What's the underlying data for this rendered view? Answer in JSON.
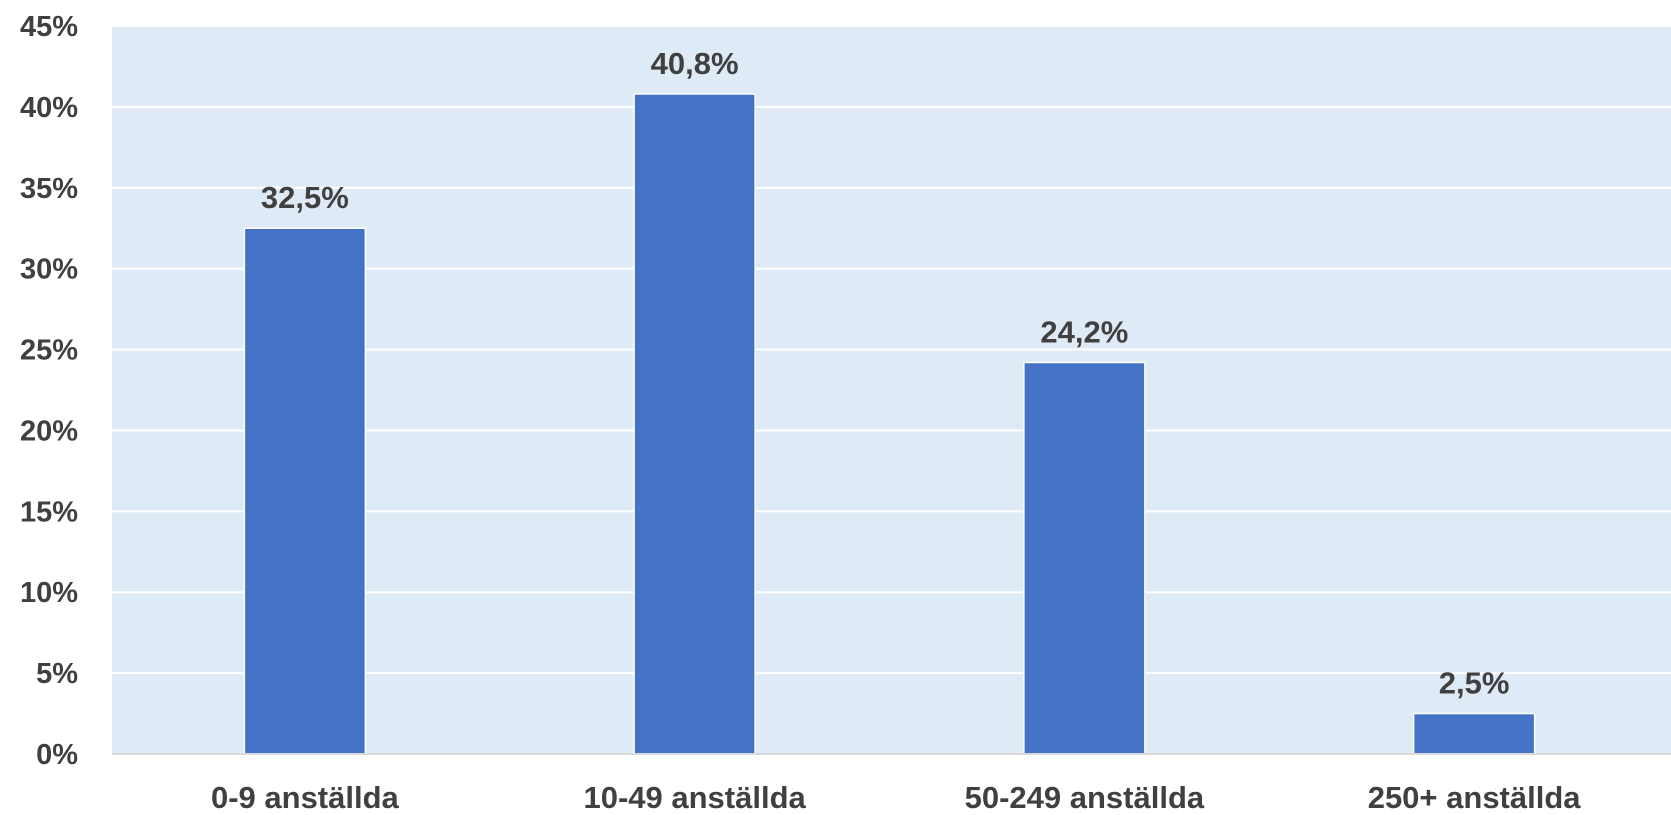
{
  "chart_data": {
    "type": "bar",
    "categories": [
      "0-9 anställda",
      "10-49 anställda",
      "50-249 anställda",
      "250+ anställda"
    ],
    "values": [
      32.5,
      40.8,
      24.2,
      2.5
    ],
    "data_labels": [
      "32,5%",
      "40,8%",
      "24,2%",
      "2,5%"
    ],
    "y_ticks": [
      "0%",
      "5%",
      "10%",
      "15%",
      "20%",
      "25%",
      "30%",
      "35%",
      "40%",
      "45%"
    ],
    "ylim": [
      0,
      45
    ],
    "grid": true,
    "legend": "none",
    "colors": {
      "bar": "#4472c4",
      "plot_background": "#deeaf6",
      "gridline": "#ffffff",
      "text": "#404040"
    }
  }
}
